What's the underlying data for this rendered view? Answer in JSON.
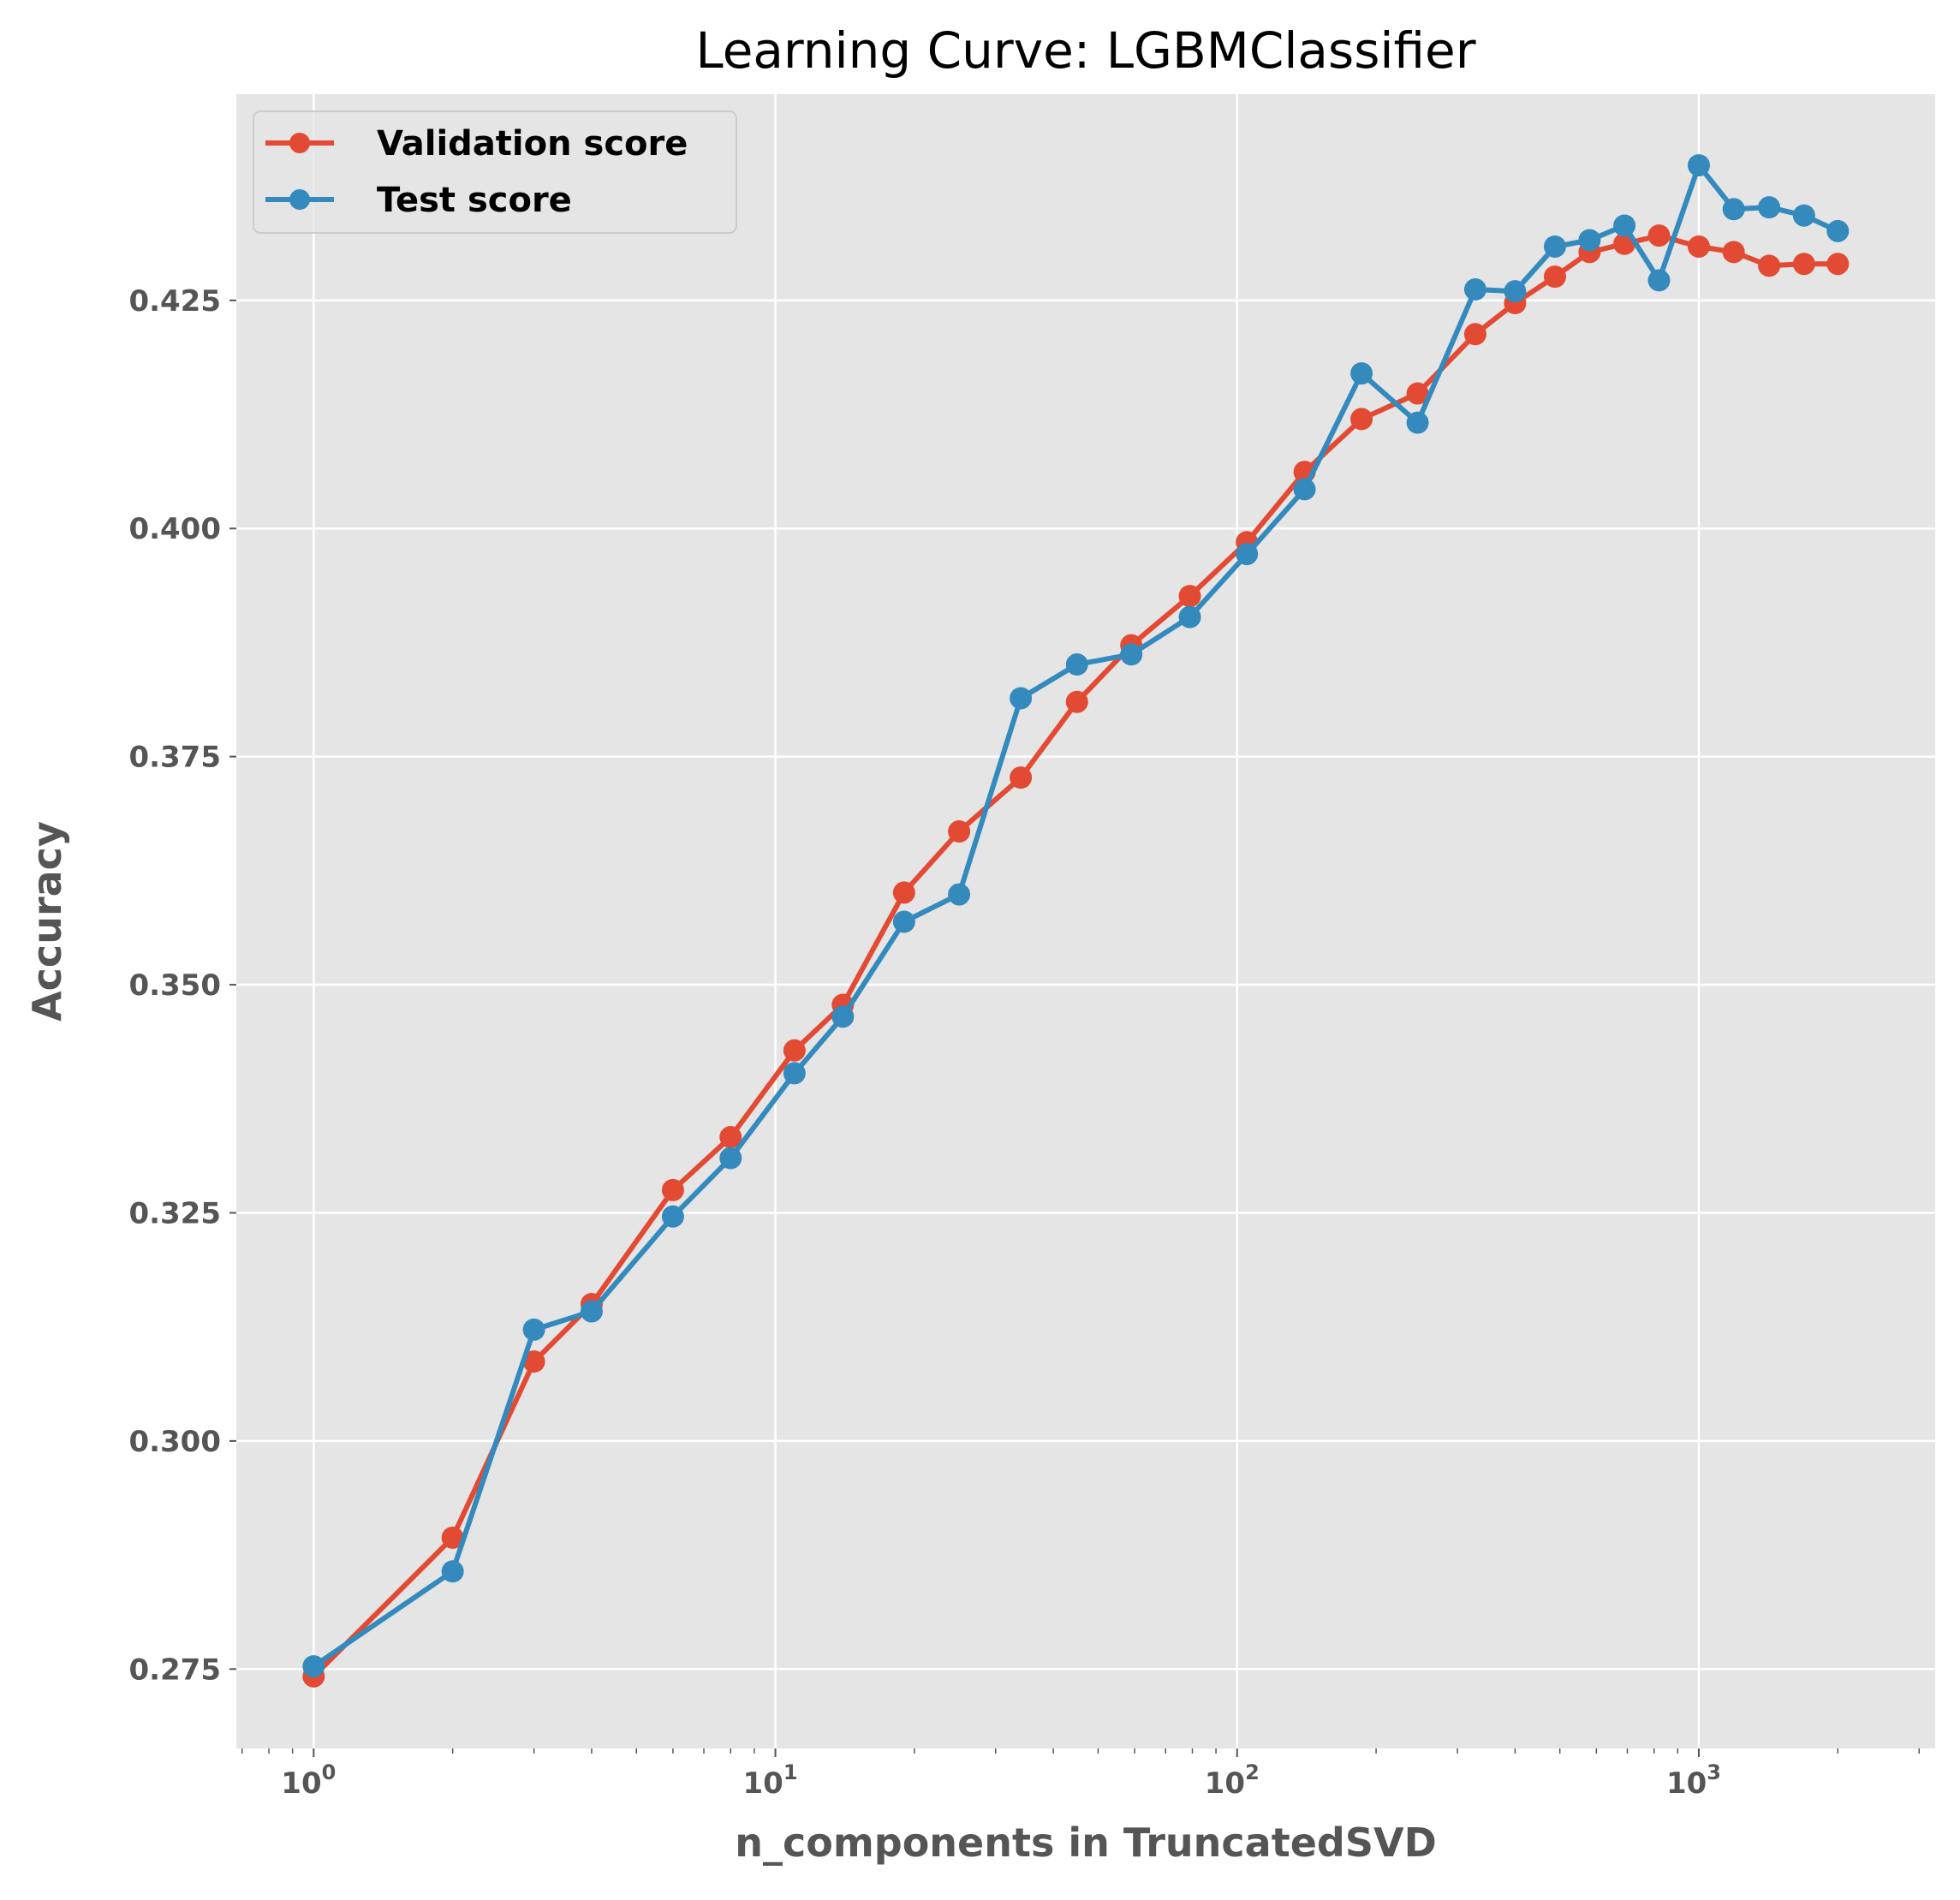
{
  "chart_data": {
    "type": "line",
    "title": "Learning Curve: LGBMClassifier",
    "xlabel": "n_components in TruncatedSVD",
    "ylabel": "Accuracy",
    "x_scale": "log",
    "xlim": [
      0.68,
      3250
    ],
    "ylim": [
      0.2663,
      0.4476
    ],
    "grid": true,
    "legend_position": "top-left",
    "y_ticks": [
      0.275,
      0.3,
      0.325,
      0.35,
      0.375,
      0.4,
      0.425
    ],
    "y_tick_labels": [
      "0.275",
      "0.300",
      "0.325",
      "0.350",
      "0.375",
      "0.400",
      "0.425"
    ],
    "x_ticks": [
      {
        "value": 1,
        "base": "10",
        "exp": "0"
      },
      {
        "value": 10,
        "base": "10",
        "exp": "1"
      },
      {
        "value": 100,
        "base": "10",
        "exp": "2"
      },
      {
        "value": 1000,
        "base": "10",
        "exp": "3"
      }
    ],
    "x": [
      1,
      2,
      3,
      4,
      6,
      8,
      11,
      14,
      19,
      25,
      34,
      45,
      59,
      79,
      105,
      140,
      186,
      246,
      328,
      400,
      488,
      580,
      690,
      820,
      1000,
      1190,
      1420,
      1690,
      2000
    ],
    "series": [
      {
        "name": "Validation score",
        "color": "#E24A33",
        "values": [
          0.2742,
          0.2894,
          0.3087,
          0.315,
          0.3275,
          0.3333,
          0.3428,
          0.3478,
          0.3601,
          0.3668,
          0.3727,
          0.381,
          0.3872,
          0.3926,
          0.3985,
          0.4062,
          0.412,
          0.4148,
          0.4213,
          0.4247,
          0.4276,
          0.4303,
          0.4312,
          0.4321,
          0.4309,
          0.4303,
          0.4288,
          0.429,
          0.429
        ]
      },
      {
        "name": "Test score",
        "color": "#348ABD",
        "values": [
          0.2753,
          0.2857,
          0.3122,
          0.3142,
          0.3246,
          0.331,
          0.3403,
          0.3465,
          0.3569,
          0.3599,
          0.3814,
          0.3851,
          0.3862,
          0.3903,
          0.3972,
          0.4043,
          0.417,
          0.4116,
          0.4262,
          0.426,
          0.4309,
          0.4316,
          0.4332,
          0.4272,
          0.4398,
          0.435,
          0.4352,
          0.4343,
          0.4326
        ]
      }
    ]
  }
}
